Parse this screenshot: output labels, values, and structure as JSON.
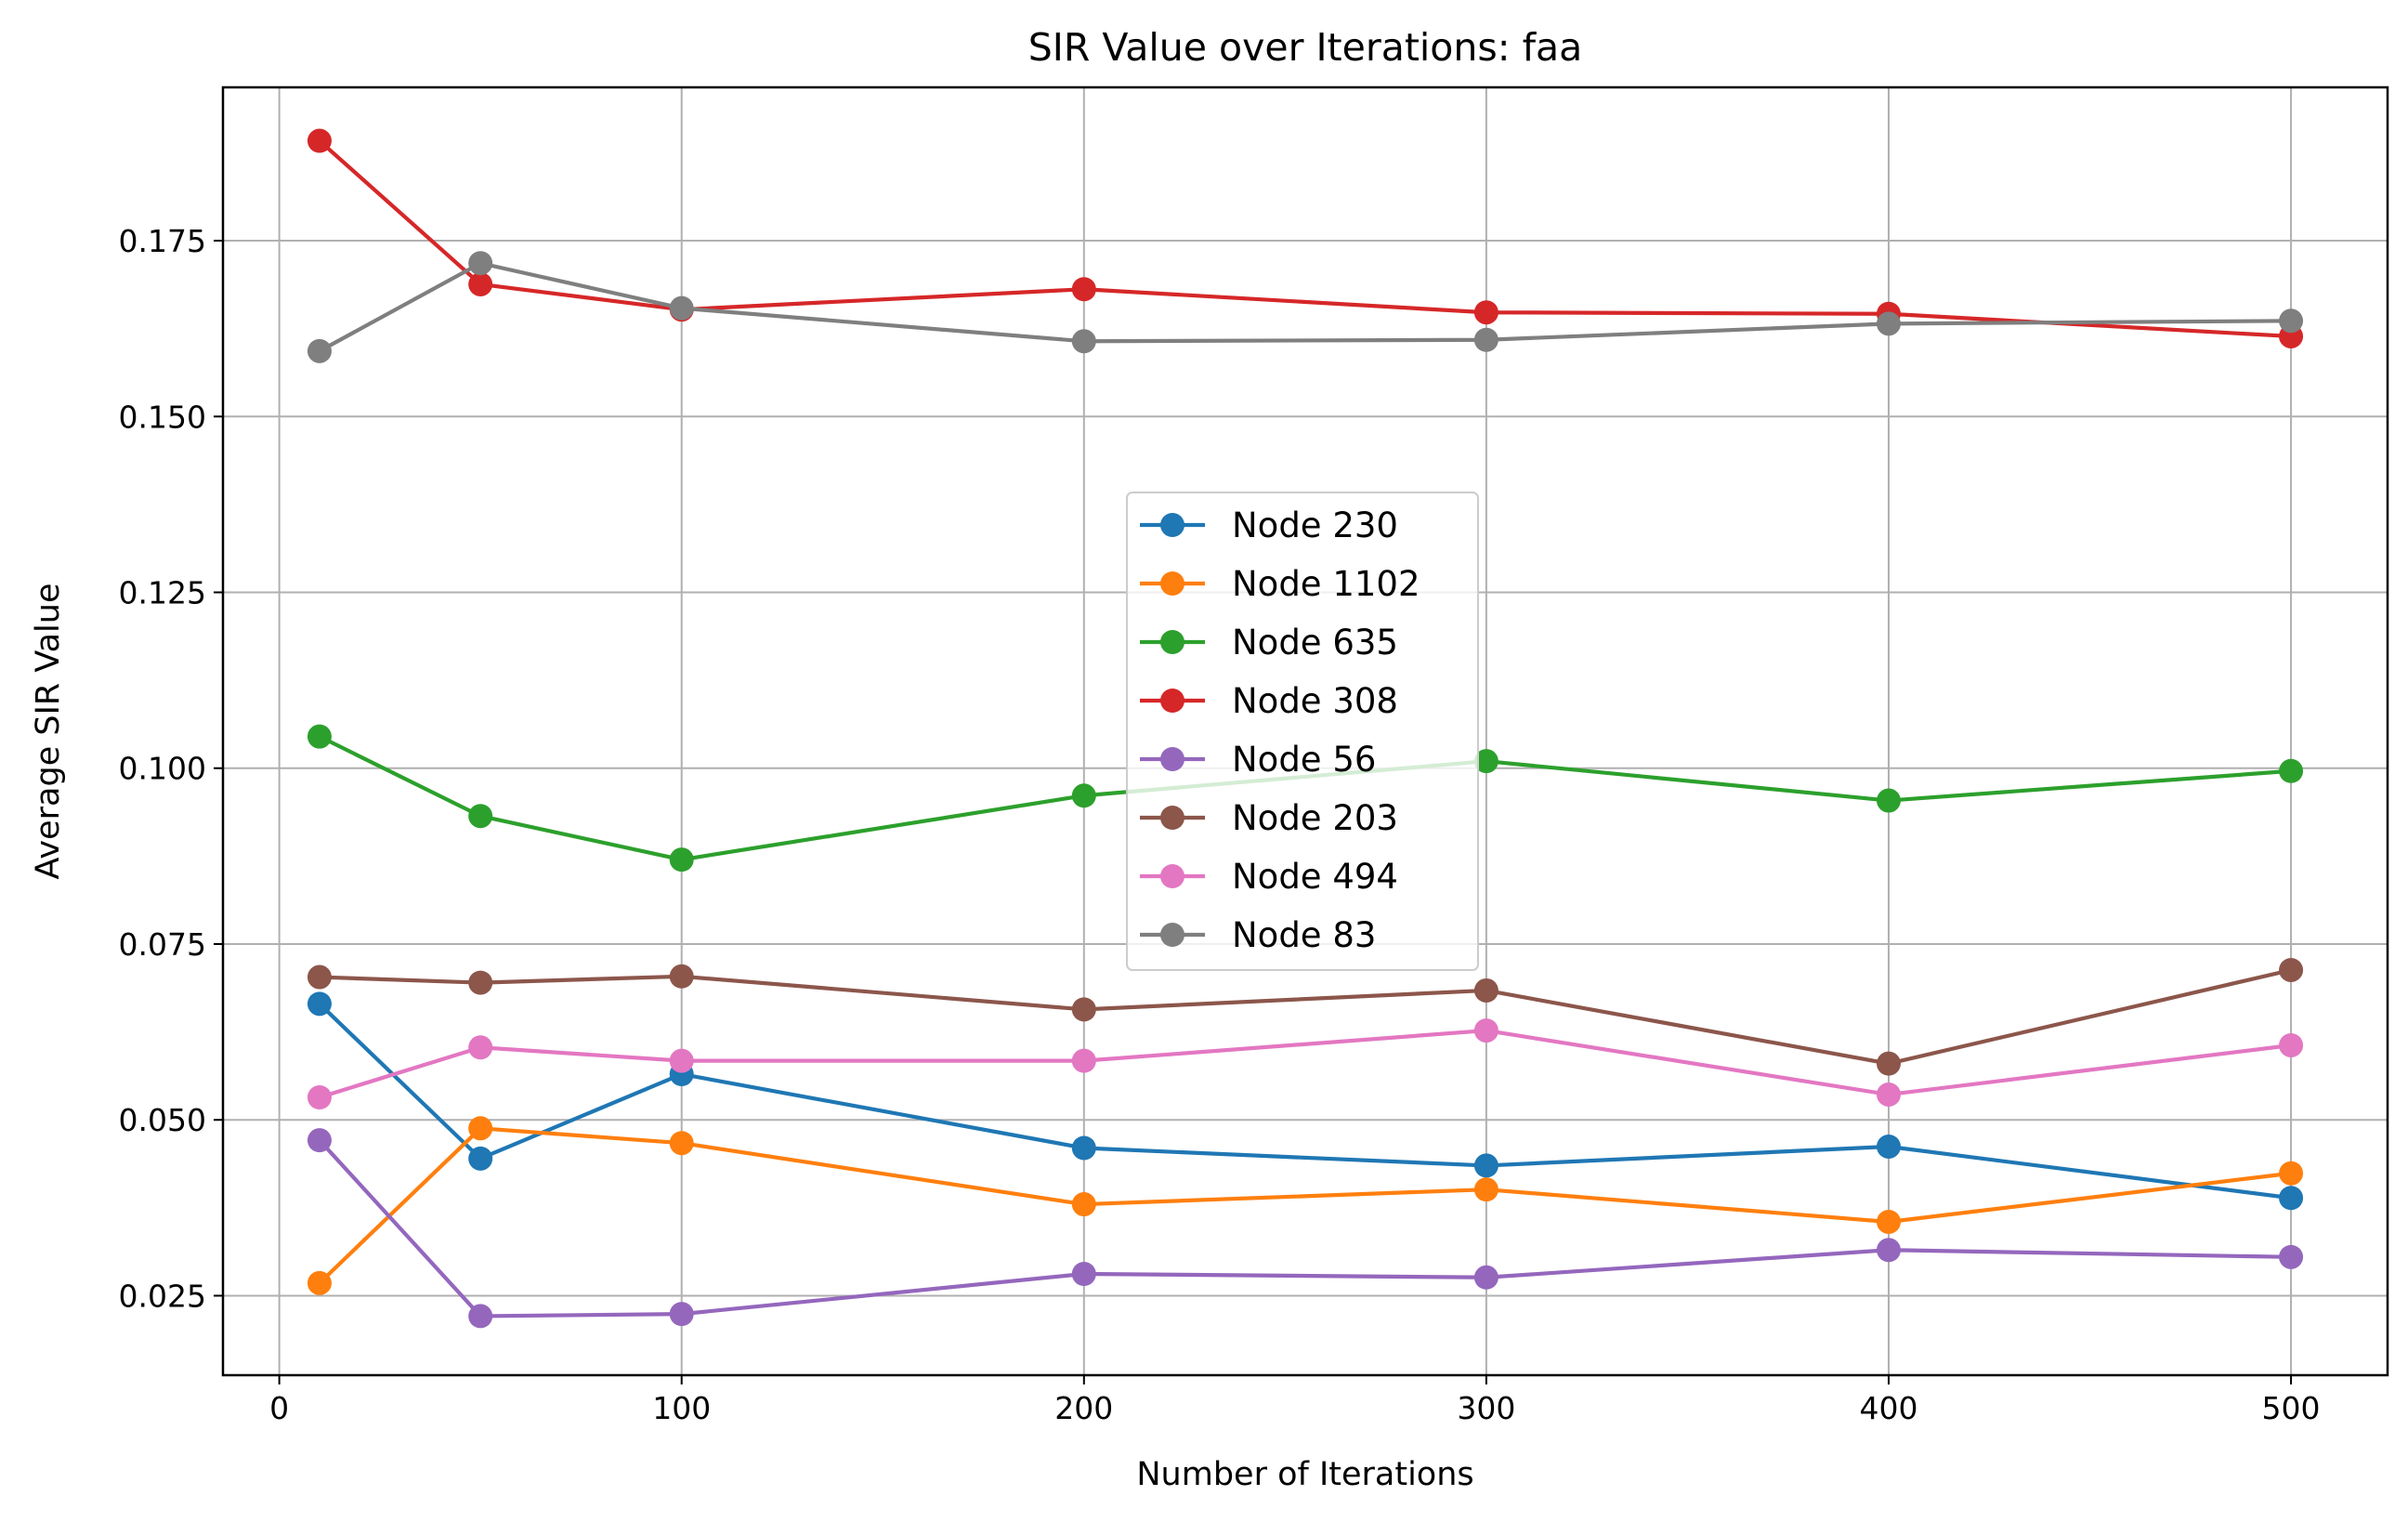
{
  "chart_data": {
    "type": "line",
    "title": "SIR Value over Iterations: faa",
    "xlabel": "Number of Iterations",
    "ylabel": "Average SIR Value",
    "xlim": [
      -14,
      524
    ],
    "ylim": [
      0.0137,
      0.1968
    ],
    "xticks": [
      0,
      100,
      200,
      300,
      400,
      500
    ],
    "xtick_labels": [
      "0",
      "100",
      "200",
      "300",
      "400",
      "500"
    ],
    "yticks": [
      0.025,
      0.05,
      0.075,
      0.1,
      0.125,
      0.15,
      0.175
    ],
    "ytick_labels": [
      "0.025",
      "0.050",
      "0.075",
      "0.100",
      "0.125",
      "0.150",
      "0.175"
    ],
    "grid": true,
    "legend_position": "center",
    "x": [
      10,
      50,
      100,
      200,
      300,
      400,
      500
    ],
    "series": [
      {
        "name": "Node 230",
        "color": "#1f77b4",
        "values": [
          0.0665,
          0.0445,
          0.0565,
          0.046,
          0.0435,
          0.0462,
          0.0389
        ]
      },
      {
        "name": "Node 1102",
        "color": "#ff7f0e",
        "values": [
          0.0268,
          0.0488,
          0.0467,
          0.038,
          0.0401,
          0.0355,
          0.0424
        ]
      },
      {
        "name": "Node 635",
        "color": "#2ca02c",
        "values": [
          0.1045,
          0.0932,
          0.087,
          0.0961,
          0.101,
          0.0954,
          0.0996
        ]
      },
      {
        "name": "Node 308",
        "color": "#d62728",
        "values": [
          0.1892,
          0.1688,
          0.1652,
          0.1681,
          0.1648,
          0.1646,
          0.1614
        ]
      },
      {
        "name": "Node 56",
        "color": "#9467bd",
        "values": [
          0.0471,
          0.0221,
          0.0224,
          0.0281,
          0.0276,
          0.0315,
          0.0305
        ]
      },
      {
        "name": "Node 203",
        "color": "#8c564b",
        "values": [
          0.0703,
          0.0695,
          0.0704,
          0.0657,
          0.0684,
          0.058,
          0.0713
        ]
      },
      {
        "name": "Node 494",
        "color": "#e377c2",
        "values": [
          0.0532,
          0.0603,
          0.0584,
          0.0584,
          0.0627,
          0.0536,
          0.0606
        ]
      },
      {
        "name": "Node 83",
        "color": "#7f7f7f",
        "values": [
          0.1593,
          0.1718,
          0.1654,
          0.1607,
          0.1609,
          0.1632,
          0.1636
        ]
      }
    ]
  }
}
